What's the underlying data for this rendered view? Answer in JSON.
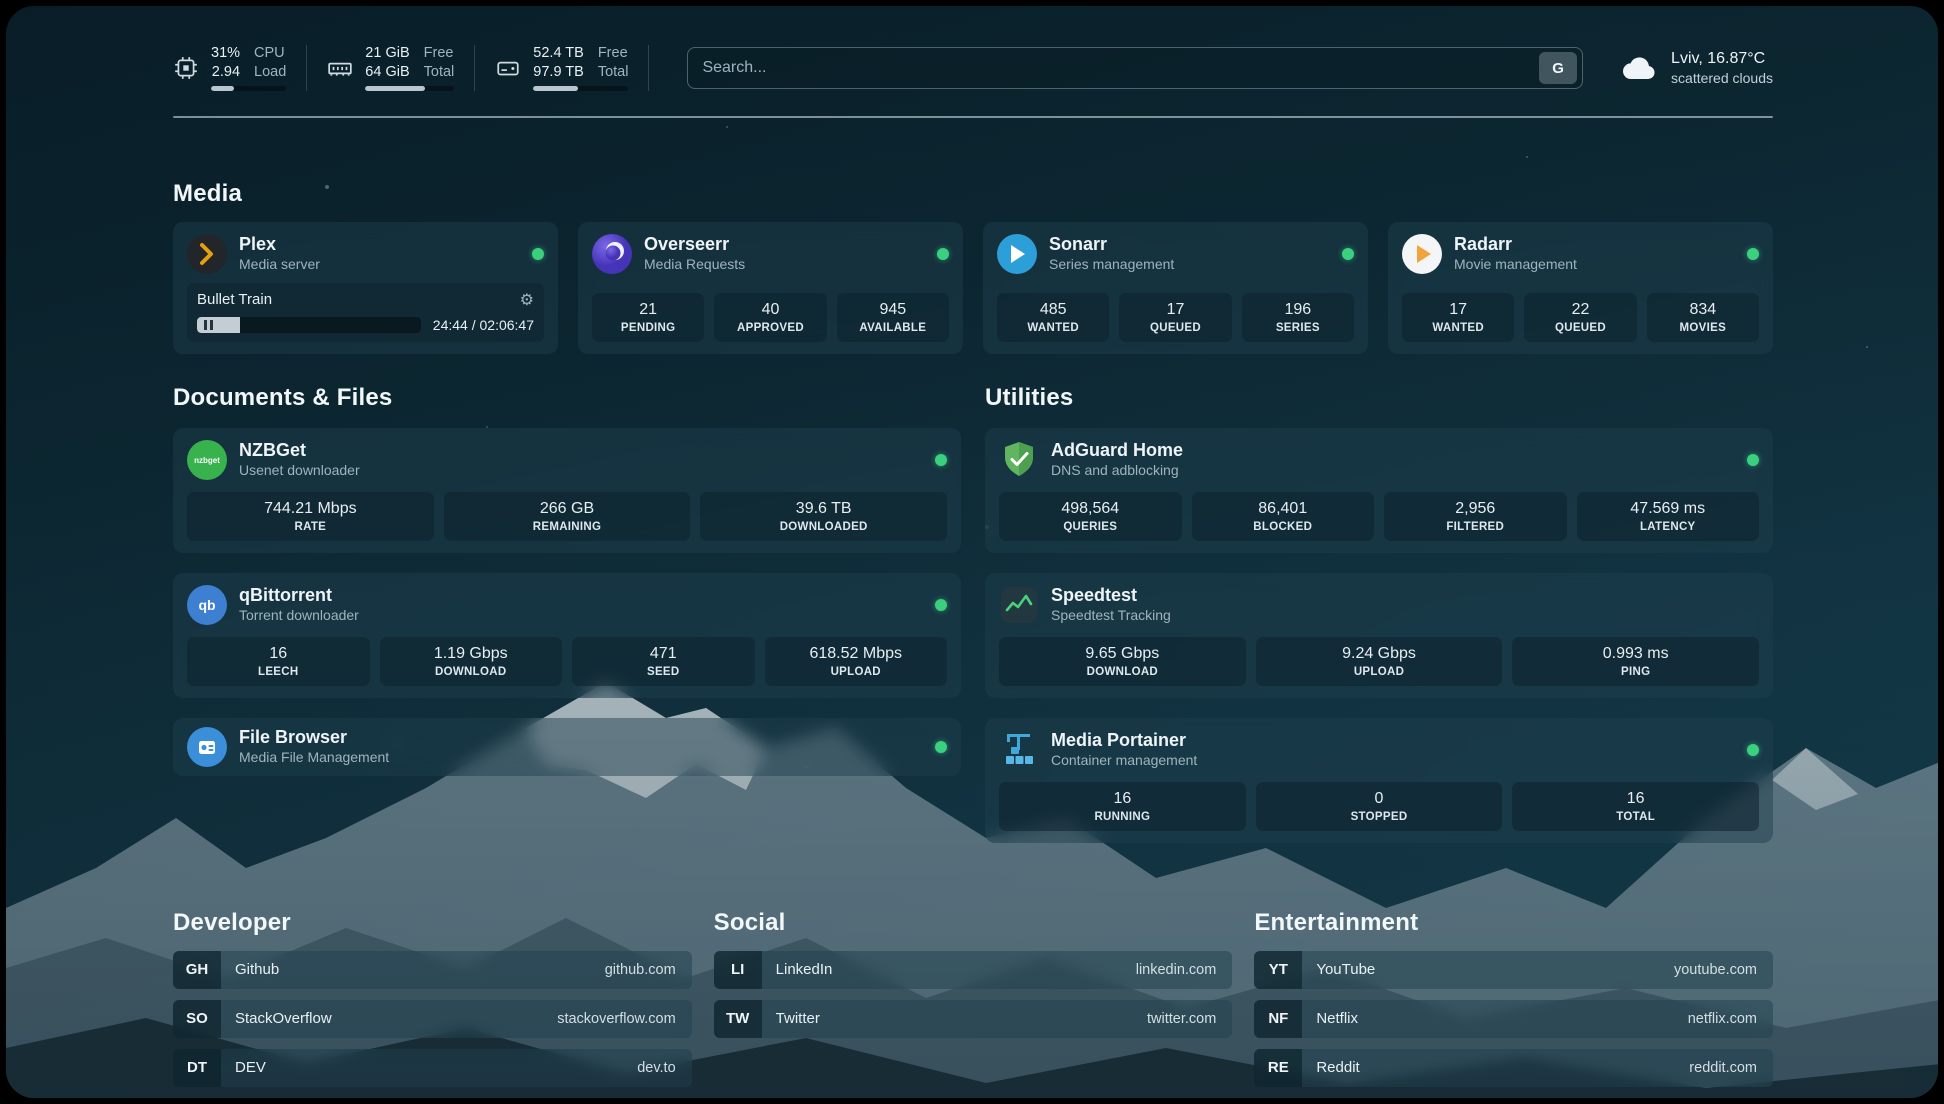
{
  "topbar": {
    "cpu": {
      "value_top": "31%",
      "value_bottom": "2.94",
      "label_top": "CPU",
      "label_bottom": "Load",
      "bar_percent": 31
    },
    "memory": {
      "value_top": "21 GiB",
      "value_bottom": "64 GiB",
      "label_top": "Free",
      "label_bottom": "Total",
      "bar_percent": 67
    },
    "disk": {
      "value_top": "52.4 TB",
      "value_bottom": "97.9 TB",
      "label_top": "Free",
      "label_bottom": "Total",
      "bar_percent": 47
    },
    "search": {
      "placeholder": "Search...",
      "button_label": "G"
    },
    "weather": {
      "location": "Lviv, 16.87°C",
      "condition": "scattered clouds"
    }
  },
  "sections": {
    "media": {
      "title": "Media",
      "plex": {
        "name": "Plex",
        "desc": "Media server",
        "now_playing": "Bullet Train",
        "time": "24:44 / 02:06:47",
        "progress_percent": 19
      },
      "cards": [
        {
          "name": "Overseerr",
          "desc": "Media Requests",
          "stats": [
            {
              "value": "21",
              "label": "PENDING"
            },
            {
              "value": "40",
              "label": "APPROVED"
            },
            {
              "value": "945",
              "label": "AVAILABLE"
            }
          ]
        },
        {
          "name": "Sonarr",
          "desc": "Series management",
          "stats": [
            {
              "value": "485",
              "label": "WANTED"
            },
            {
              "value": "17",
              "label": "QUEUED"
            },
            {
              "value": "196",
              "label": "SERIES"
            }
          ]
        },
        {
          "name": "Radarr",
          "desc": "Movie management",
          "stats": [
            {
              "value": "17",
              "label": "WANTED"
            },
            {
              "value": "22",
              "label": "QUEUED"
            },
            {
              "value": "834",
              "label": "MOVIES"
            }
          ]
        }
      ]
    },
    "documents": {
      "title": "Documents & Files",
      "cards": [
        {
          "name": "NZBGet",
          "desc": "Usenet downloader",
          "icon_text": "nzbget",
          "stats": [
            {
              "value": "744.21 Mbps",
              "label": "RATE"
            },
            {
              "value": "266 GB",
              "label": "REMAINING"
            },
            {
              "value": "39.6 TB",
              "label": "DOWNLOADED"
            }
          ]
        },
        {
          "name": "qBittorrent",
          "desc": "Torrent downloader",
          "icon_text": "qb",
          "stats": [
            {
              "value": "16",
              "label": "LEECH"
            },
            {
              "value": "1.19 Gbps",
              "label": "DOWNLOAD"
            },
            {
              "value": "471",
              "label": "SEED"
            },
            {
              "value": "618.52 Mbps",
              "label": "UPLOAD"
            }
          ]
        },
        {
          "name": "File Browser",
          "desc": "Media File Management",
          "stats": []
        }
      ]
    },
    "utilities": {
      "title": "Utilities",
      "cards": [
        {
          "name": "AdGuard Home",
          "desc": "DNS and adblocking",
          "stats": [
            {
              "value": "498,564",
              "label": "QUERIES"
            },
            {
              "value": "86,401",
              "label": "BLOCKED"
            },
            {
              "value": "2,956",
              "label": "FILTERED"
            },
            {
              "value": "47.569 ms",
              "label": "LATENCY"
            }
          ]
        },
        {
          "name": "Speedtest",
          "desc": "Speedtest Tracking",
          "stats": [
            {
              "value": "9.65 Gbps",
              "label": "DOWNLOAD"
            },
            {
              "value": "9.24 Gbps",
              "label": "UPLOAD"
            },
            {
              "value": "0.993 ms",
              "label": "PING"
            }
          ]
        },
        {
          "name": "Media Portainer",
          "desc": "Container management",
          "stats": [
            {
              "value": "16",
              "label": "RUNNING"
            },
            {
              "value": "0",
              "label": "STOPPED"
            },
            {
              "value": "16",
              "label": "TOTAL"
            }
          ]
        }
      ]
    }
  },
  "bookmarks": {
    "developer": {
      "title": "Developer",
      "items": [
        {
          "abbr": "GH",
          "name": "Github",
          "url": "github.com"
        },
        {
          "abbr": "SO",
          "name": "StackOverflow",
          "url": "stackoverflow.com"
        },
        {
          "abbr": "DT",
          "name": "DEV",
          "url": "dev.to"
        }
      ]
    },
    "social": {
      "title": "Social",
      "items": [
        {
          "abbr": "LI",
          "name": "LinkedIn",
          "url": "linkedin.com"
        },
        {
          "abbr": "TW",
          "name": "Twitter",
          "url": "twitter.com"
        }
      ]
    },
    "entertainment": {
      "title": "Entertainment",
      "items": [
        {
          "abbr": "YT",
          "name": "YouTube",
          "url": "youtube.com"
        },
        {
          "abbr": "NF",
          "name": "Netflix",
          "url": "netflix.com"
        },
        {
          "abbr": "RE",
          "name": "Reddit",
          "url": "reddit.com"
        }
      ]
    }
  },
  "colors": {
    "status_green": "#3ad07f",
    "plex_accent": "#e5a00d"
  }
}
